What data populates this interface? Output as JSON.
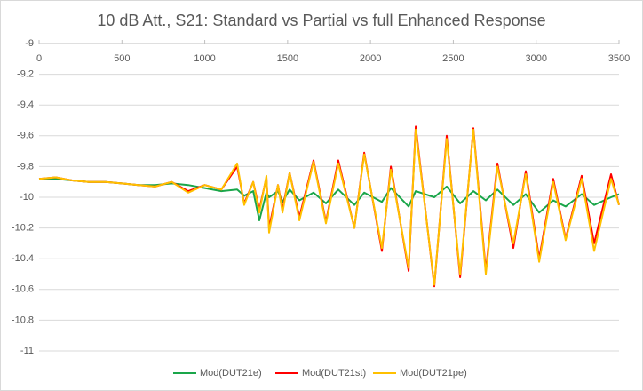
{
  "chart_data": {
    "type": "line",
    "title": "10 dB Att., S21: Standard vs Partial vs full Enhanced Response",
    "x": [
      0,
      100,
      200,
      300,
      400,
      500,
      600,
      700,
      800,
      900,
      1000,
      1100,
      1195,
      1238,
      1292,
      1329,
      1372,
      1388,
      1442,
      1469,
      1512,
      1571,
      1656,
      1731,
      1806,
      1903,
      1962,
      2069,
      2123,
      2230,
      2273,
      2385,
      2460,
      2541,
      2621,
      2696,
      2766,
      2862,
      2937,
      3018,
      3103,
      3178,
      3275,
      3350,
      3452,
      3500
    ],
    "series": [
      {
        "name": "Mod(DUT21e)",
        "color": "#1aa64a",
        "values": [
          -9.88,
          -9.88,
          -9.89,
          -9.9,
          -9.9,
          -9.91,
          -9.92,
          -9.92,
          -9.91,
          -9.92,
          -9.94,
          -9.96,
          -9.95,
          -9.99,
          -9.96,
          -10.15,
          -9.97,
          -10.0,
          -9.96,
          -10.03,
          -9.95,
          -10.02,
          -9.97,
          -10.04,
          -9.95,
          -10.05,
          -9.97,
          -10.03,
          -9.94,
          -10.06,
          -9.96,
          -10.0,
          -9.93,
          -10.04,
          -9.96,
          -10.02,
          -9.95,
          -10.05,
          -9.98,
          -10.1,
          -10.02,
          -10.06,
          -9.98,
          -10.05,
          -10.0,
          -9.98
        ]
      },
      {
        "name": "Mod(DUT21st)",
        "color": "#ff0000",
        "values": [
          -9.88,
          -9.87,
          -9.89,
          -9.9,
          -9.9,
          -9.91,
          -9.92,
          -9.93,
          -9.9,
          -9.96,
          -9.92,
          -9.95,
          -9.8,
          -10.04,
          -9.9,
          -10.08,
          -9.87,
          -10.2,
          -9.92,
          -10.08,
          -9.84,
          -10.13,
          -9.76,
          -10.16,
          -9.76,
          -10.2,
          -9.71,
          -10.35,
          -9.8,
          -10.48,
          -9.54,
          -10.58,
          -9.6,
          -10.52,
          -9.55,
          -10.48,
          -9.78,
          -10.33,
          -9.83,
          -10.4,
          -9.88,
          -10.27,
          -9.86,
          -10.3,
          -9.85,
          -10.05
        ]
      },
      {
        "name": "Mod(DUT21pe)",
        "color": "#ffc000",
        "values": [
          -9.88,
          -9.87,
          -9.89,
          -9.9,
          -9.9,
          -9.91,
          -9.92,
          -9.93,
          -9.9,
          -9.97,
          -9.92,
          -9.95,
          -9.78,
          -10.05,
          -9.9,
          -10.1,
          -9.86,
          -10.23,
          -9.92,
          -10.1,
          -9.84,
          -10.15,
          -9.77,
          -10.17,
          -9.78,
          -10.2,
          -9.72,
          -10.33,
          -9.82,
          -10.46,
          -9.56,
          -10.57,
          -9.62,
          -10.5,
          -9.56,
          -10.5,
          -9.8,
          -10.3,
          -9.85,
          -10.42,
          -9.9,
          -10.28,
          -9.88,
          -10.35,
          -9.88,
          -10.05
        ]
      }
    ],
    "xlim": [
      0,
      3500
    ],
    "xticks": [
      0,
      500,
      1000,
      1500,
      2000,
      2500,
      3000,
      3500
    ],
    "ylim": [
      -11,
      -9
    ],
    "yticks": [
      -9,
      -9.2,
      -9.4,
      -9.6,
      -9.8,
      -10,
      -10.2,
      -10.4,
      -10.6,
      -10.8,
      -11
    ],
    "grid": true,
    "legend": "bottom"
  }
}
